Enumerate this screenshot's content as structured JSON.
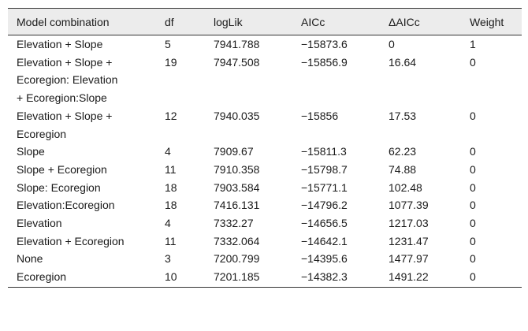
{
  "table": {
    "header": [
      "Model combination",
      "df",
      "logLik",
      "AICc",
      "ΔAICc",
      "Weight"
    ],
    "rows": [
      [
        "Elevation + Slope",
        "5",
        "7941.788",
        "−15873.6",
        "0",
        "1"
      ],
      [
        "Elevation + Slope + Ecoregion: Elevation + Ecoregion:Slope",
        "19",
        "7947.508",
        "−15856.9",
        "16.64",
        "0"
      ],
      [
        "Elevation + Slope + Ecoregion",
        "12",
        "7940.035",
        "−15856",
        "17.53",
        "0"
      ],
      [
        "Slope",
        "4",
        "7909.67",
        "−15811.3",
        "62.23",
        "0"
      ],
      [
        "Slope + Ecoregion",
        "11",
        "7910.358",
        "−15798.7",
        "74.88",
        "0"
      ],
      [
        "Slope: Ecoregion",
        "18",
        "7903.584",
        "−15771.1",
        "102.48",
        "0"
      ],
      [
        "Elevation:Ecoregion",
        "18",
        "7416.131",
        "−14796.2",
        "1077.39",
        "0"
      ],
      [
        "Elevation",
        "4",
        "7332.27",
        "−14656.5",
        "1217.03",
        "0"
      ],
      [
        "Elevation + Ecoregion",
        "11",
        "7332.064",
        "−14642.1",
        "1231.47",
        "0"
      ],
      [
        "None",
        "3",
        "7200.799",
        "−14395.6",
        "1477.97",
        "0"
      ],
      [
        "Ecoregion",
        "10",
        "7201.185",
        "−14382.3",
        "1491.22",
        "0"
      ]
    ]
  }
}
